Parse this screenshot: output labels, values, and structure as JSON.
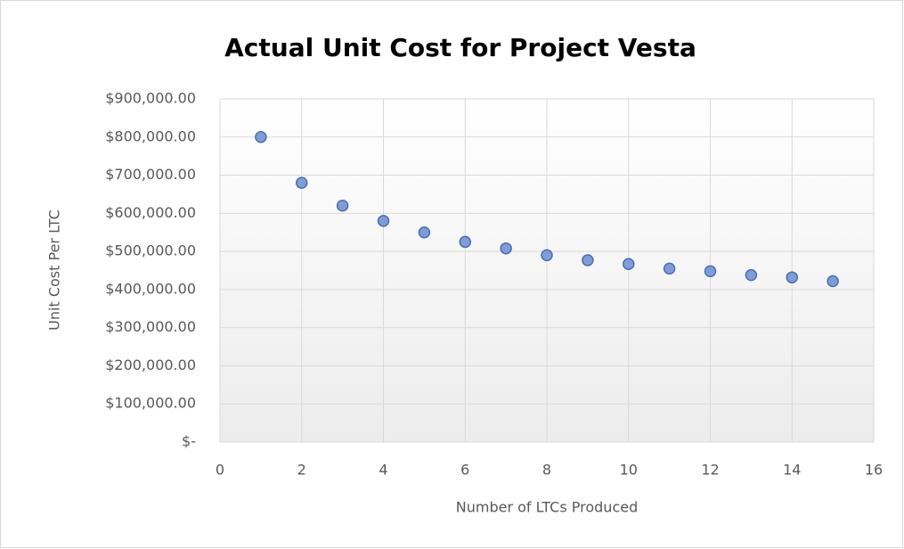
{
  "chart_data": {
    "type": "scatter",
    "title": "Actual Unit Cost for Project Vesta",
    "x_label": "Number of LTCs Produced",
    "y_label": "Unit Cost Per LTC",
    "series": [
      {
        "name": "Unit Cost",
        "color": "#7f9cd6",
        "edge_color": "#4a6fb5",
        "x": [
          1,
          2,
          3,
          4,
          5,
          6,
          7,
          8,
          9,
          10,
          11,
          12,
          13,
          14,
          15
        ],
        "values": [
          800000,
          680000,
          620000,
          580000,
          550000,
          525000,
          508000,
          490000,
          477000,
          467000,
          455000,
          448000,
          438000,
          432000,
          422000
        ]
      }
    ],
    "xlim": [
      0,
      16
    ],
    "xticks": [
      0,
      2,
      4,
      6,
      8,
      10,
      12,
      14,
      16
    ],
    "ylim": [
      0,
      900000
    ],
    "yticks": [
      {
        "value": 0,
        "label": "$-"
      },
      {
        "value": 100000,
        "label": "$100,000.00"
      },
      {
        "value": 200000,
        "label": "$200,000.00"
      },
      {
        "value": 300000,
        "label": "$300,000.00"
      },
      {
        "value": 400000,
        "label": "$400,000.00"
      },
      {
        "value": 500000,
        "label": "$500,000.00"
      },
      {
        "value": 600000,
        "label": "$600,000.00"
      },
      {
        "value": 700000,
        "label": "$700,000.00"
      },
      {
        "value": 800000,
        "label": "$800,000.00"
      },
      {
        "value": 900000,
        "label": "$900,000.00"
      }
    ],
    "grid": true
  }
}
